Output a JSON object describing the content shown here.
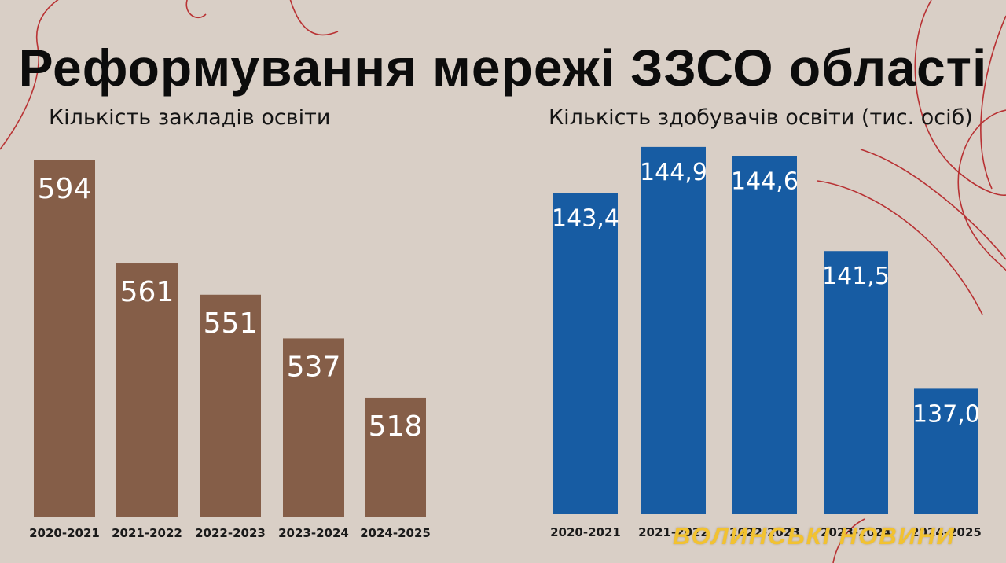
{
  "title": "Реформування мережі ЗЗСО області",
  "watermark": "ВОЛИНСЬКІ НОВИНИ",
  "colors": {
    "background": "#d9cfc6",
    "left_bars": "#855e48",
    "right_bars": "#175ca3",
    "decor_lines": "#b52124",
    "label_text": "#ffffff",
    "watermark": "#f2c230"
  },
  "chart_data": [
    {
      "type": "bar",
      "title": "Кількість закладів освіти",
      "categories": [
        "2020-2021",
        "2021-2022",
        "2022-2023",
        "2023-2024",
        "2024-2025"
      ],
      "values": [
        594,
        561,
        551,
        537,
        518
      ],
      "value_labels": [
        "594",
        "561",
        "551",
        "537",
        "518"
      ],
      "ylim": [
        480,
        600
      ],
      "grid": false,
      "legend": "none"
    },
    {
      "type": "bar",
      "title": "Кількість здобувачів освіти (тис. осіб)",
      "categories": [
        "2020-2021",
        "2021-2022",
        "2022-2023",
        "2023-2024",
        "2024-2025"
      ],
      "values": [
        143.4,
        144.9,
        144.6,
        141.5,
        137.0
      ],
      "value_labels": [
        "143,4",
        "144,9",
        "144,6",
        "141,5",
        "137,0"
      ],
      "ylim": [
        132.9,
        145.0
      ],
      "grid": false,
      "legend": "none"
    }
  ]
}
